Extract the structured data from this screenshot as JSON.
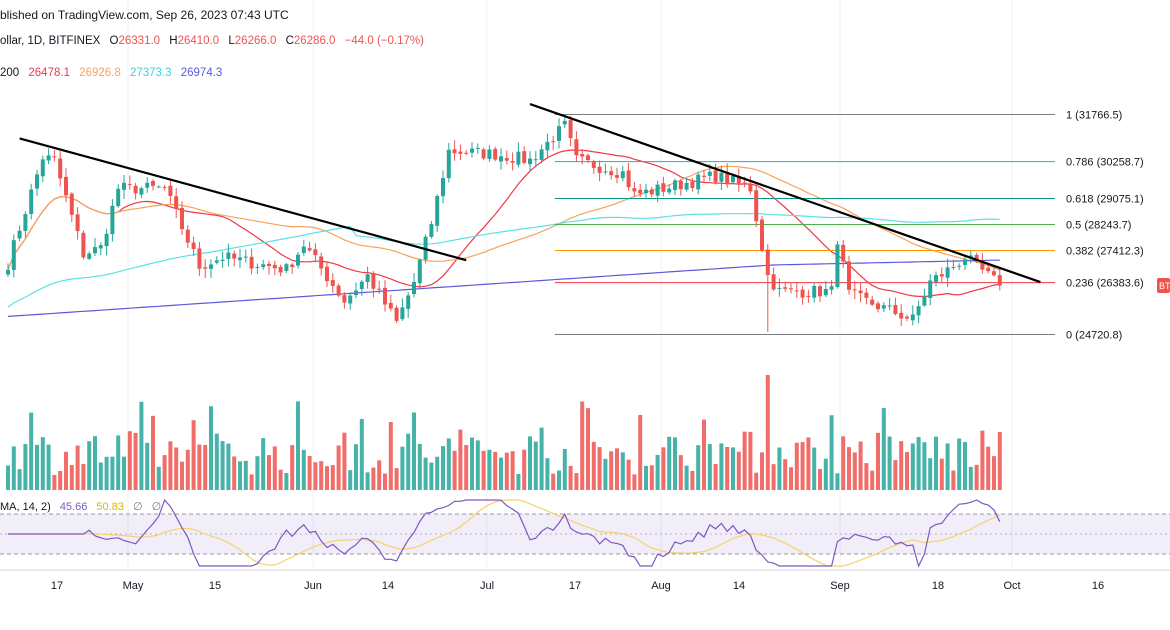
{
  "header": {
    "publish_line": "blished on TradingView.com, Sep 26, 2023 07:43 UTC",
    "symbol": "ollar, 1D, BITFINEX",
    "o_label": "O",
    "o_value": "26331.0",
    "h_label": "H",
    "h_value": "26410.0",
    "l_label": "L",
    "l_value": "26266.0",
    "c_label": "C",
    "c_value": "26286.0",
    "change": "−44.0 (−0.17%)",
    "ma_prefix": "200",
    "ma_values": [
      "26478.1",
      "26926.8",
      "27373.3",
      "26974.3"
    ]
  },
  "rsi_header": {
    "label": "MA, 14, 2)",
    "rsi_value": "45.66",
    "rsi_ma_value": "50.83",
    "symbols": [
      "∅",
      "∅"
    ]
  },
  "price_badge": "BT",
  "x_axis_labels": [
    "17",
    "May",
    "15",
    "Jun",
    "14",
    "Jul",
    "17",
    "Aug",
    "14",
    "Sep",
    "18",
    "Oct",
    "16"
  ],
  "colors": {
    "up": "#26a69a",
    "down": "#ef5350",
    "ma_red": "#f23645",
    "ma_orange": "#f7a35c",
    "ma_cyan": "#5ce1e6",
    "ma_blue": "#5b59dc",
    "rsi_line": "#7e57c2",
    "rsi_ma": "#f5d26b",
    "trendline": "#000000"
  },
  "chart_data": {
    "type": "candlestick",
    "title": "",
    "xlabel": "",
    "ylabel": "",
    "grid": true,
    "x": {
      "start": "2023-04-08",
      "end": "2023-10-24"
    },
    "ohlc_anchors": [
      [
        "2023-04-08",
        27000
      ],
      [
        "2023-04-14",
        30400
      ],
      [
        "2023-04-16",
        30300
      ],
      [
        "2023-04-21",
        27300
      ],
      [
        "2023-04-24",
        27500
      ],
      [
        "2023-04-27",
        29400
      ],
      [
        "2023-05-05",
        29400
      ],
      [
        "2023-05-11",
        26900
      ],
      [
        "2023-05-15",
        27200
      ],
      [
        "2023-05-26",
        26800
      ],
      [
        "2023-05-29",
        27600
      ],
      [
        "2023-06-05",
        25800
      ],
      [
        "2023-06-09",
        26600
      ],
      [
        "2023-06-14",
        25100
      ],
      [
        "2023-06-17",
        26400
      ],
      [
        "2023-06-20",
        28300
      ],
      [
        "2023-06-23",
        30600
      ],
      [
        "2023-07-01",
        30500
      ],
      [
        "2023-07-07",
        30300
      ],
      [
        "2023-07-13",
        31400
      ],
      [
        "2023-07-15",
        30300
      ],
      [
        "2023-07-23",
        29900
      ],
      [
        "2023-07-25",
        29200
      ],
      [
        "2023-07-30",
        29400
      ],
      [
        "2023-08-08",
        29800
      ],
      [
        "2023-08-14",
        29400
      ],
      [
        "2023-08-17",
        26600
      ],
      [
        "2023-08-19",
        26100
      ],
      [
        "2023-08-28",
        26100
      ],
      [
        "2023-08-29",
        27800
      ],
      [
        "2023-08-31",
        26000
      ],
      [
        "2023-09-11",
        25200
      ],
      [
        "2023-09-14",
        26400
      ],
      [
        "2023-09-18",
        26900
      ],
      [
        "2023-09-20",
        27200
      ],
      [
        "2023-09-26",
        26290
      ]
    ],
    "moving_averages": [
      {
        "value": "26478.1",
        "color": "#f23645"
      },
      {
        "value": "26926.8",
        "color": "#f7a35c"
      },
      {
        "value": "27373.3",
        "color": "#5ce1e6"
      },
      {
        "value": "26974.3",
        "color": "#5b59dc"
      }
    ],
    "fibonacci": {
      "from_date": "2023-07-13",
      "to_date": "2023-09-26",
      "levels": [
        {
          "ratio": "1",
          "price": 31766.5,
          "label": "1 (31766.5)",
          "color": "#787b86"
        },
        {
          "ratio": "0.786",
          "price": 30258.7,
          "label": "0.786 (30258.7)",
          "color": "#00bcd4"
        },
        {
          "ratio": "0.618",
          "price": 29075.1,
          "label": "0.618 (29075.1)",
          "color": "#089981"
        },
        {
          "ratio": "0.5",
          "price": 28243.7,
          "label": "0.5 (28243.7)",
          "color": "#4caf50"
        },
        {
          "ratio": "0.382",
          "price": 27412.3,
          "label": "0.382 (27412.3)",
          "color": "#ff9800"
        },
        {
          "ratio": "0.236",
          "price": 26383.6,
          "label": "0.236 (26383.6)",
          "color": "#f23645"
        },
        {
          "ratio": "0",
          "price": 24720.8,
          "label": "0 (24720.8)",
          "color": "#787b86"
        }
      ]
    },
    "trendlines": [
      {
        "from": [
          "2023-04-10",
          31000
        ],
        "to": [
          "2023-06-26",
          27100
        ]
      },
      {
        "from": [
          "2023-07-07",
          32100
        ],
        "to": [
          "2023-10-03",
          26400
        ]
      }
    ],
    "rsi": {
      "length": 14,
      "value": 45.66,
      "ma_value": 50.83,
      "upper_band": 70,
      "middle_band": 50,
      "lower_band": 30,
      "range": [
        0,
        100
      ]
    }
  }
}
